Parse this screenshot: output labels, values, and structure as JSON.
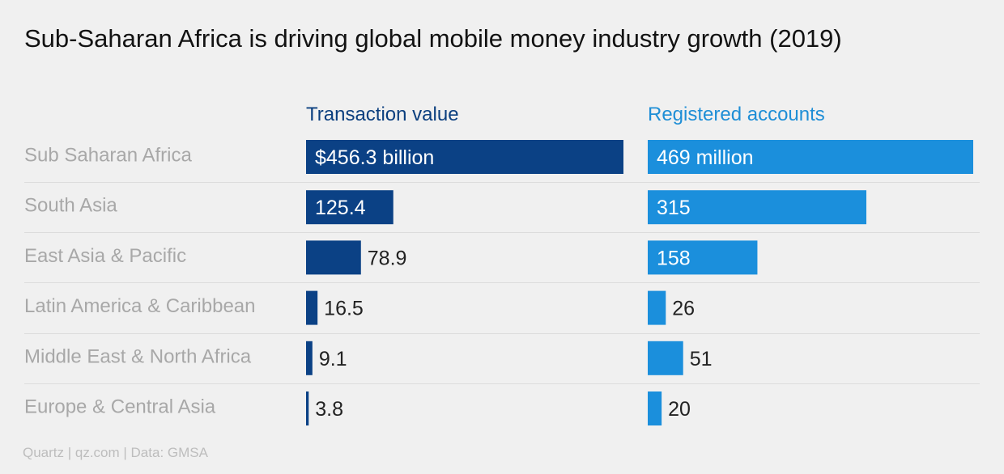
{
  "title": "Sub-Saharan Africa is driving global mobile money industry growth (2019)",
  "source": "Quartz | qz.com | Data: GMSA",
  "colors": {
    "background": "#f0f0f0",
    "transaction_bar": "#0b4185",
    "accounts_bar": "#1b8fdc",
    "category_text": "#a8a8a8",
    "value_text": "#222222",
    "divider": "#dcdcdc"
  },
  "chart_data": {
    "type": "bar",
    "orientation": "horizontal",
    "categories": [
      "Sub Saharan Africa",
      "South Asia",
      "East Asia & Pacific",
      "Latin America & Caribbean",
      "Middle East & North Africa",
      "Europe & Central Asia"
    ],
    "series": [
      {
        "name": "Transaction value",
        "values": [
          456.3,
          125.4,
          78.9,
          16.5,
          9.1,
          3.8
        ],
        "labels": [
          "$456.3 billion",
          "125.4",
          "78.9",
          "16.5",
          "9.1",
          "3.8"
        ],
        "xlim": [
          0,
          456.3
        ]
      },
      {
        "name": "Registered accounts",
        "values": [
          469,
          315,
          158,
          26,
          51,
          20
        ],
        "labels": [
          "469 million",
          "315",
          "158",
          "26",
          "51",
          "20"
        ],
        "xlim": [
          0,
          469
        ]
      }
    ],
    "grid": false,
    "legend": "column headers"
  }
}
